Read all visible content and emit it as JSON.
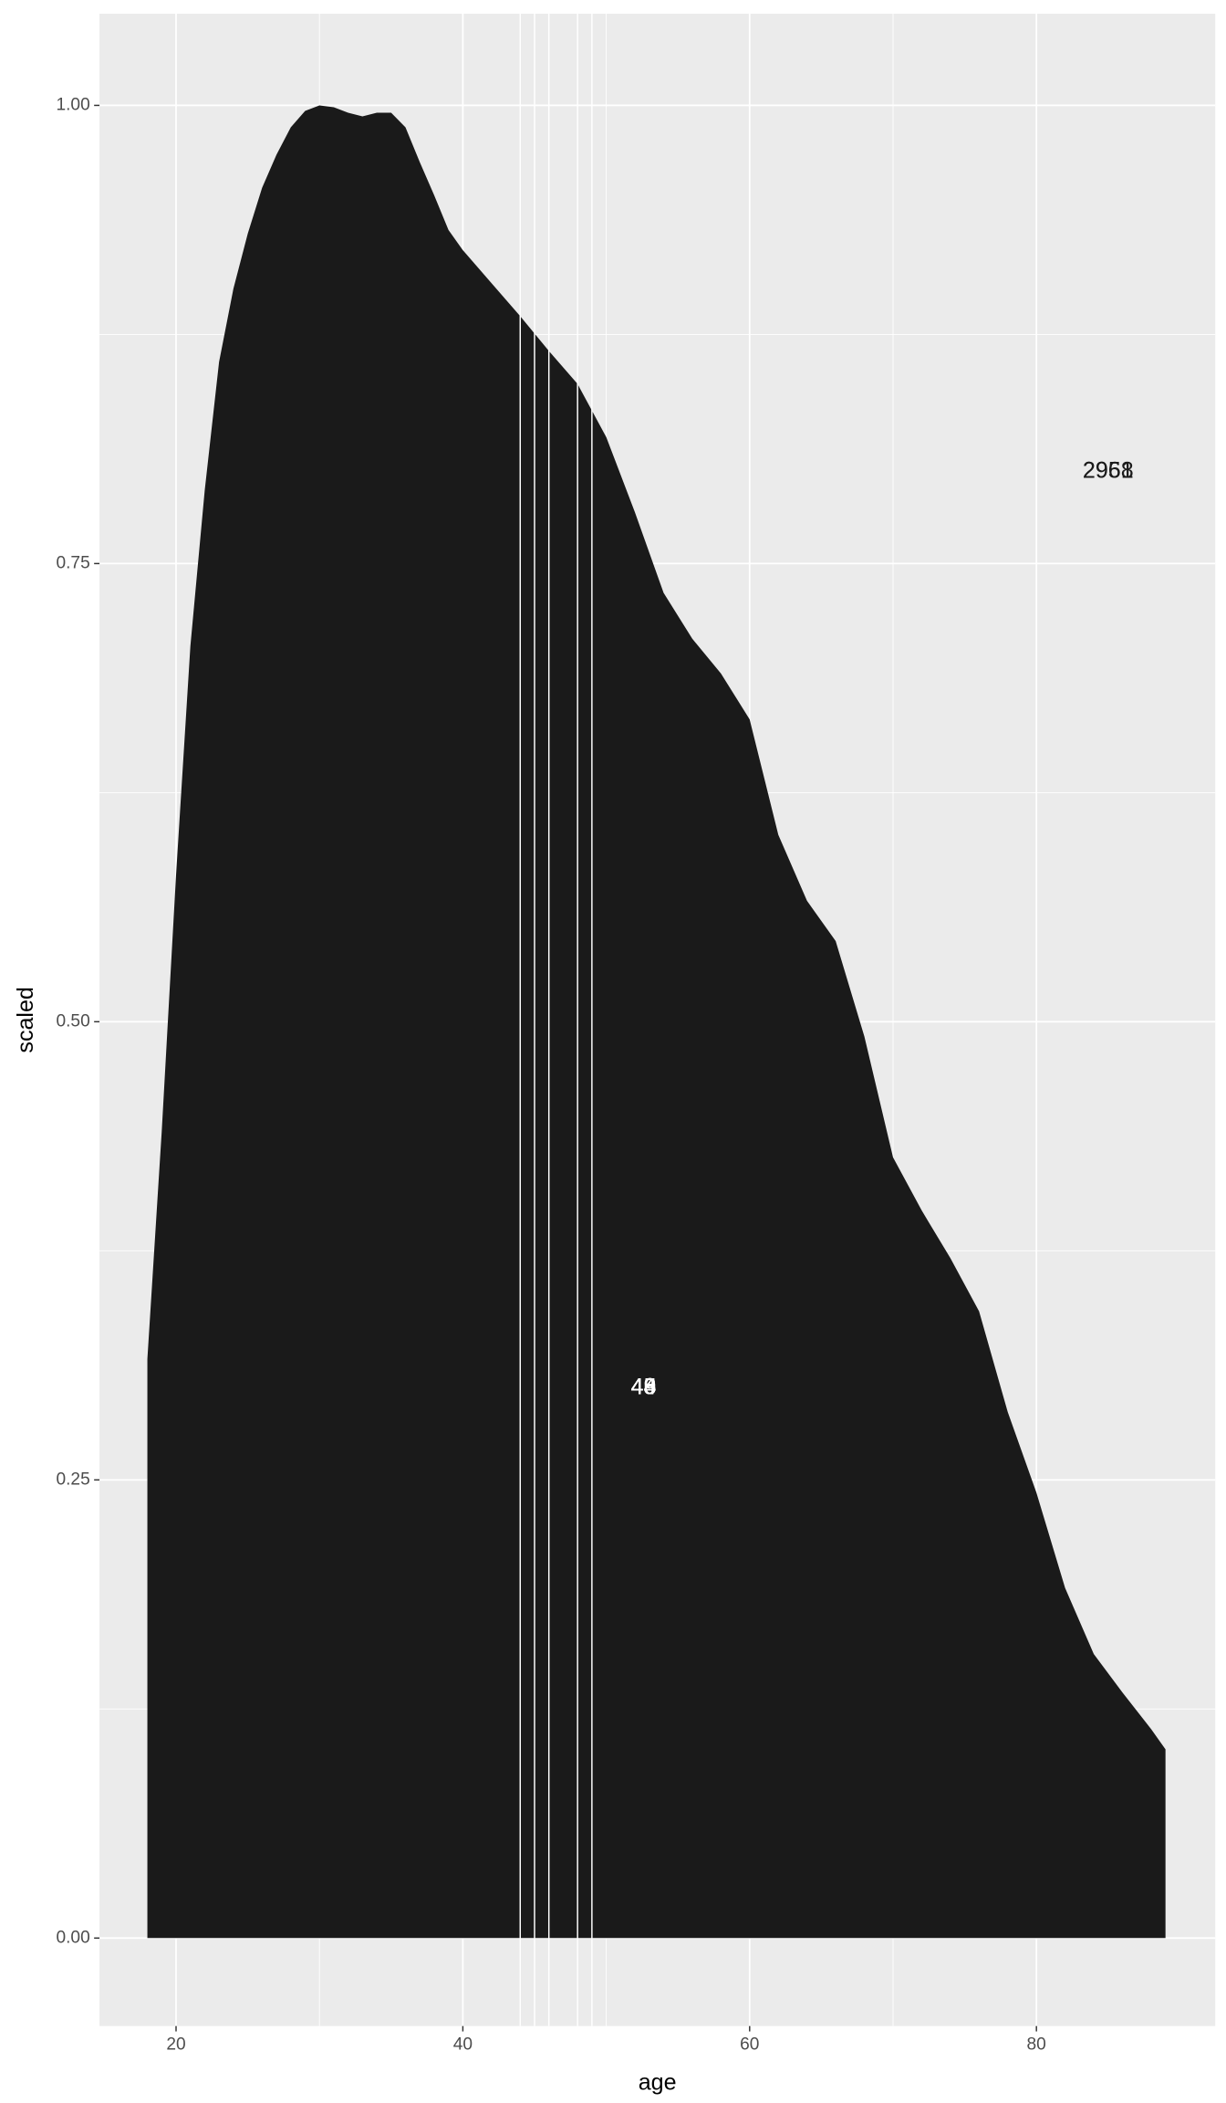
{
  "chart_data": {
    "type": "area",
    "x_label": "age",
    "y_label": "scaled",
    "x": [
      18,
      19,
      20,
      21,
      22,
      23,
      24,
      25,
      26,
      27,
      28,
      29,
      30,
      31,
      32,
      33,
      34,
      35,
      36,
      37,
      38,
      39,
      40,
      42,
      44,
      46,
      48,
      50,
      52,
      54,
      56,
      58,
      60,
      62,
      64,
      66,
      68,
      70,
      72,
      74,
      76,
      78,
      80,
      82,
      84,
      86,
      88,
      89
    ],
    "values": [
      0.316,
      0.44,
      0.58,
      0.705,
      0.79,
      0.86,
      0.9,
      0.93,
      0.955,
      0.973,
      0.988,
      0.997,
      1.0,
      0.999,
      0.996,
      0.994,
      0.996,
      0.996,
      0.988,
      0.969,
      0.951,
      0.932,
      0.921,
      0.903,
      0.885,
      0.866,
      0.848,
      0.819,
      0.778,
      0.734,
      0.709,
      0.69,
      0.665,
      0.602,
      0.566,
      0.544,
      0.492,
      0.426,
      0.397,
      0.371,
      0.342,
      0.287,
      0.243,
      0.191,
      0.155,
      0.134,
      0.114,
      0.103
    ],
    "color": "#1a1a1a",
    "vlines": [
      44,
      45,
      46,
      48,
      49
    ],
    "vline_color": "#ffffff",
    "annotations": [
      {
        "text": "44",
        "x": 52.6,
        "y": 0.3,
        "color": "#ffffff"
      },
      {
        "text": "45",
        "x": 52.6,
        "y": 0.3,
        "color": "#ffffff"
      },
      {
        "text": "46",
        "x": 52.6,
        "y": 0.3,
        "color": "#ffffff"
      },
      {
        "text": "48",
        "x": 52.6,
        "y": 0.3,
        "color": "#ffffff"
      },
      {
        "text": "49",
        "x": 52.6,
        "y": 0.3,
        "color": "#ffffff"
      },
      {
        "text": "2958",
        "x": 85,
        "y": 0.8,
        "color": "#1a1a1a"
      },
      {
        "text": "2961",
        "x": 85,
        "y": 0.8,
        "color": "#1a1a1a"
      }
    ],
    "xlim": [
      14.66,
      92.47
    ],
    "xticks": [
      20,
      40,
      60,
      80
    ],
    "ylim": [
      -0.048,
      1.05
    ],
    "yticks": [
      {
        "value": 0,
        "label": "0.00"
      },
      {
        "value": 0.25,
        "label": "0.25"
      },
      {
        "value": 0.5,
        "label": "0.50"
      },
      {
        "value": 0.75,
        "label": "0.75"
      },
      {
        "value": 1,
        "label": "1.00"
      }
    ],
    "grid": true
  }
}
